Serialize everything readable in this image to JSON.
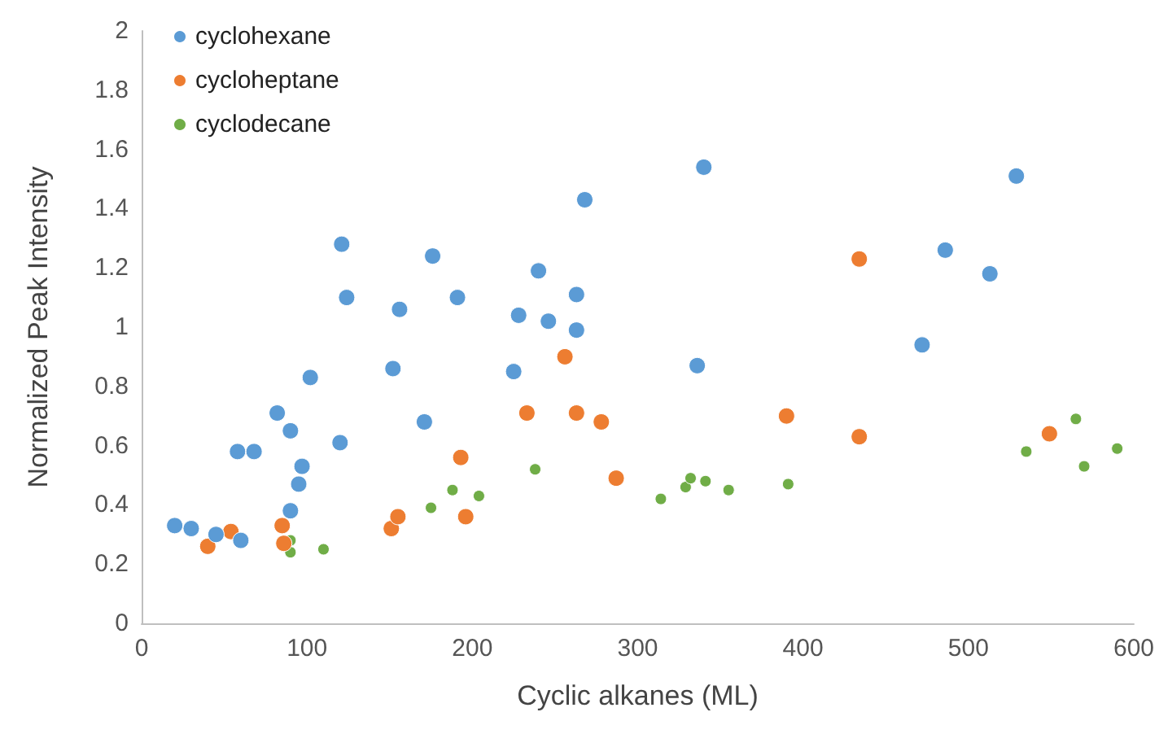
{
  "chart_data": {
    "type": "scatter",
    "xlabel": "Cyclic alkanes (ML)",
    "ylabel": "Normalized Peak Intensity",
    "xlim": [
      0,
      600
    ],
    "xticks": [
      0,
      100,
      200,
      300,
      400,
      500,
      600
    ],
    "ylim": [
      0,
      2
    ],
    "yticks": [
      0,
      0.2,
      0.4,
      0.6,
      0.8,
      1,
      1.2,
      1.4,
      1.6,
      1.8,
      2
    ],
    "grid": false,
    "legend": "top left",
    "marker": "circle",
    "series": [
      {
        "name": "cyclohexane",
        "color": "#5b9bd5",
        "x": [
          20,
          30,
          45,
          60,
          58,
          68,
          82,
          90,
          90,
          95,
          97,
          102,
          120,
          121,
          124,
          152,
          156,
          171,
          176,
          191,
          225,
          228,
          240,
          246,
          263,
          263,
          268,
          336,
          340,
          472,
          486,
          513,
          529
        ],
        "values": [
          0.33,
          0.32,
          0.3,
          0.28,
          0.58,
          0.58,
          0.71,
          0.65,
          0.38,
          0.47,
          0.53,
          0.83,
          0.61,
          1.28,
          1.1,
          0.86,
          1.06,
          0.68,
          1.24,
          1.1,
          0.85,
          1.04,
          1.19,
          1.02,
          1.11,
          0.99,
          1.43,
          0.87,
          1.54,
          0.94,
          1.26,
          1.18,
          1.51
        ]
      },
      {
        "name": "cycloheptane",
        "color": "#ed7d31",
        "x": [
          40,
          54,
          85,
          86,
          151,
          155,
          193,
          196,
          233,
          256,
          263,
          278,
          287,
          390,
          434,
          434,
          549
        ],
        "values": [
          0.26,
          0.31,
          0.33,
          0.27,
          0.32,
          0.36,
          0.56,
          0.36,
          0.71,
          0.9,
          0.71,
          0.68,
          0.49,
          0.7,
          1.23,
          0.63,
          0.64
        ]
      },
      {
        "name": "cyclodecane",
        "color": "#70ad47",
        "x": [
          90,
          90,
          110,
          175,
          188,
          204,
          238,
          314,
          329,
          332,
          341,
          355,
          391,
          535,
          565,
          570,
          590
        ],
        "values": [
          0.28,
          0.24,
          0.25,
          0.39,
          0.45,
          0.43,
          0.52,
          0.42,
          0.46,
          0.49,
          0.48,
          0.45,
          0.47,
          0.58,
          0.69,
          0.53,
          0.59
        ]
      }
    ]
  }
}
